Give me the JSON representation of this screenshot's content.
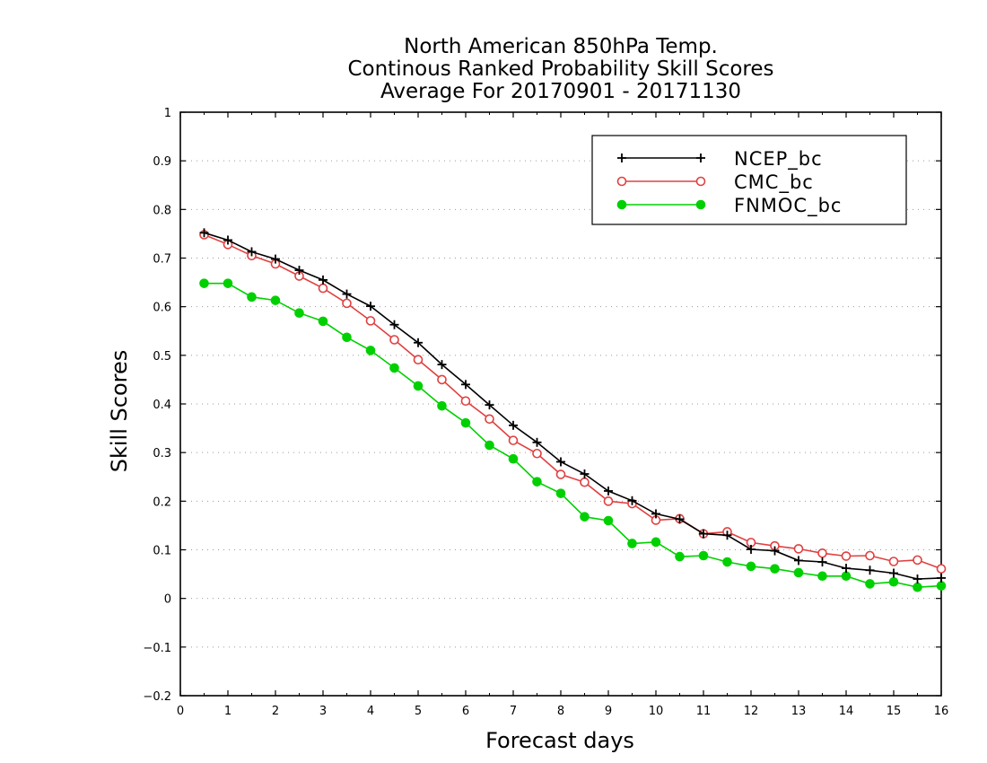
{
  "chart_data": {
    "type": "line",
    "title": [
      "North American 850hPa Temp.",
      "Continous Ranked Probability Skill Scores",
      "Average For 20170901 - 20171130"
    ],
    "xlabel": "Forecast days",
    "ylabel": "Skill Scores",
    "xlim": [
      0,
      16
    ],
    "ylim": [
      -0.2,
      1
    ],
    "x_ticks": [
      "0",
      "1",
      "2",
      "3",
      "4",
      "5",
      "6",
      "7",
      "8",
      "9",
      "10",
      "11",
      "12",
      "13",
      "14",
      "15",
      "16"
    ],
    "y_ticks": [
      "−0.2",
      "−0.1",
      "0",
      "0.1",
      "0.2",
      "0.3",
      "0.4",
      "0.5",
      "0.6",
      "0.7",
      "0.8",
      "0.9",
      "1"
    ],
    "grid": "horizontal dotted",
    "legend_position": "top-right",
    "x": [
      0.5,
      1,
      1.5,
      2,
      2.5,
      3,
      3.5,
      4,
      4.5,
      5,
      5.5,
      6,
      6.5,
      7,
      7.5,
      8,
      8.5,
      9,
      9.5,
      10,
      10.5,
      11,
      11.5,
      12,
      12.5,
      13,
      13.5,
      14,
      14.5,
      15,
      15.5,
      16
    ],
    "series": [
      {
        "name": "NCEP_bc",
        "color": "#000000",
        "marker": "plus",
        "values": [
          0.752,
          0.737,
          0.713,
          0.698,
          0.675,
          0.655,
          0.626,
          0.601,
          0.563,
          0.526,
          0.481,
          0.44,
          0.398,
          0.356,
          0.321,
          0.281,
          0.256,
          0.221,
          0.201,
          0.174,
          0.163,
          0.133,
          0.13,
          0.101,
          0.098,
          0.078,
          0.075,
          0.062,
          0.058,
          0.052,
          0.04,
          0.042
        ]
      },
      {
        "name": "CMC_bc",
        "color": "#e04040",
        "marker": "open-circle",
        "values": [
          0.748,
          0.728,
          0.705,
          0.688,
          0.663,
          0.638,
          0.607,
          0.571,
          0.532,
          0.491,
          0.45,
          0.406,
          0.369,
          0.325,
          0.298,
          0.255,
          0.239,
          0.2,
          0.195,
          0.161,
          0.164,
          0.133,
          0.137,
          0.115,
          0.108,
          0.102,
          0.093,
          0.087,
          0.088,
          0.076,
          0.079,
          0.061
        ]
      },
      {
        "name": "FNMOC_bc",
        "color": "#00d000",
        "marker": "filled-circle",
        "values": [
          0.648,
          0.648,
          0.62,
          0.613,
          0.587,
          0.57,
          0.537,
          0.51,
          0.474,
          0.437,
          0.396,
          0.361,
          0.315,
          0.287,
          0.24,
          0.216,
          0.168,
          0.16,
          0.113,
          0.116,
          0.086,
          0.088,
          0.075,
          0.066,
          0.061,
          0.053,
          0.046,
          0.046,
          0.03,
          0.034,
          0.023,
          0.026
        ]
      }
    ]
  }
}
